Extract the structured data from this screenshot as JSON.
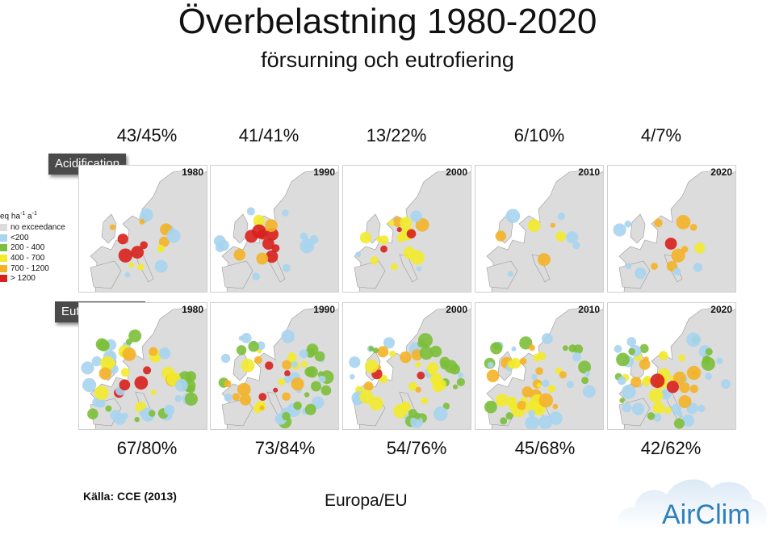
{
  "title": "Överbelastning 1980-2020",
  "subtitle": "försurning och eutrofiering",
  "acidification": {
    "label": "Acidification",
    "percentages": [
      "43/45%",
      "41/41%",
      "13/22%",
      "6/10%",
      "4/7%"
    ],
    "years": [
      "1980",
      "1990",
      "2000",
      "2010",
      "2020"
    ]
  },
  "eutrophication": {
    "label": "Eutrophication",
    "percentages": [
      "67/80%",
      "73/84%",
      "54/76%",
      "45/68%",
      "42/62%"
    ],
    "years": [
      "1980",
      "1990",
      "2000",
      "2010",
      "2020"
    ]
  },
  "legend": {
    "unit_main": "eq ha",
    "unit_exp1": "-1",
    "unit_mid": " a",
    "unit_exp2": "-1",
    "items": [
      {
        "label": "no exceedance",
        "color": "#dcdcdc"
      },
      {
        "label": "<200",
        "color": "#a8d4ef"
      },
      {
        "label": "200 - 400",
        "color": "#7cbf3a"
      },
      {
        "label": "400 - 700",
        "color": "#f2ea2c"
      },
      {
        "label": "700 - 1200",
        "color": "#f4b326"
      },
      {
        "label": "> 1200",
        "color": "#d8201c"
      }
    ]
  },
  "source": "Källa: CCE (2013)",
  "region": "Europa/EU",
  "logo": {
    "text": "AirClim",
    "color": "#2d7fbd"
  },
  "map_colors": {
    "land": "#dcdcdc",
    "sea": "#ffffff",
    "border": "#9a9a9a",
    "lt200": "#a8d4ef",
    "c200_400": "#7cbf3a",
    "c400_700": "#f2ea2c",
    "c700_1200": "#f4b326",
    "gt1200": "#d8201c"
  }
}
